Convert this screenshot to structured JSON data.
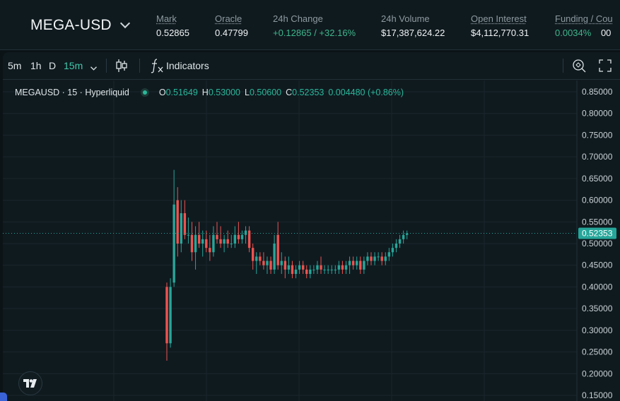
{
  "header": {
    "pair": "MEGA-USD",
    "stats": [
      {
        "label": "Mark",
        "value": "0.52865",
        "underline": true,
        "green": false
      },
      {
        "label": "Oracle",
        "value": "0.47799",
        "underline": true,
        "green": false
      },
      {
        "label": "24h Change",
        "value": "+0.12865 / +32.16%",
        "underline": false,
        "green": true
      },
      {
        "label": "24h Volume",
        "value": "$17,387,624.22",
        "underline": false,
        "green": false
      },
      {
        "label": "Open Interest",
        "value": "$4,112,770.31",
        "underline": true,
        "green": false
      },
      {
        "label": "Funding / Cou",
        "value": "0.0034%",
        "value2": "00",
        "underline": true,
        "green": true
      }
    ]
  },
  "toolbar": {
    "timeframes": [
      "5m",
      "1h",
      "D",
      "15m"
    ],
    "active_timeframe": "15m",
    "indicators_label": "Indicators",
    "indicators_icon": "fx-icon",
    "chart_type_icon": "candlestick-icon",
    "snapshot_icon": "camera-icon",
    "fullscreen_icon": "fullscreen-icon"
  },
  "legend": {
    "symbol": "MEGAUSD · 15 · Hyperliquid",
    "o_label": "O",
    "o": "0.51649",
    "h_label": "H",
    "h": "0.53000",
    "l_label": "L",
    "l": "0.50600",
    "c_label": "C",
    "c": "0.52353",
    "change": "0.004480 (+0.86%)"
  },
  "colors": {
    "up": "#26a69a",
    "down": "#ef5350",
    "accent": "#44c8aa",
    "background": "#0f1a1f"
  },
  "chart_data": {
    "type": "candlestick",
    "ylim": [
      0.15,
      0.85
    ],
    "y_ticks": [
      "0.85000",
      "0.80000",
      "0.75000",
      "0.70000",
      "0.65000",
      "0.60000",
      "0.55000",
      "0.50000",
      "0.45000",
      "0.40000",
      "0.35000",
      "0.30000",
      "0.25000",
      "0.20000",
      "0.15000"
    ],
    "last_price": 0.52353,
    "last_price_label": "0.52353",
    "grid": true,
    "candles": [
      {
        "o": 0.4,
        "h": 0.41,
        "l": 0.23,
        "c": 0.27
      },
      {
        "o": 0.27,
        "h": 0.42,
        "l": 0.26,
        "c": 0.4
      },
      {
        "o": 0.41,
        "h": 0.67,
        "l": 0.4,
        "c": 0.59
      },
      {
        "o": 0.6,
        "h": 0.63,
        "l": 0.47,
        "c": 0.5
      },
      {
        "o": 0.5,
        "h": 0.6,
        "l": 0.48,
        "c": 0.57
      },
      {
        "o": 0.57,
        "h": 0.6,
        "l": 0.51,
        "c": 0.52
      },
      {
        "o": 0.52,
        "h": 0.56,
        "l": 0.5,
        "c": 0.52
      },
      {
        "o": 0.52,
        "h": 0.55,
        "l": 0.46,
        "c": 0.48
      },
      {
        "o": 0.48,
        "h": 0.54,
        "l": 0.44,
        "c": 0.52
      },
      {
        "o": 0.52,
        "h": 0.55,
        "l": 0.49,
        "c": 0.5
      },
      {
        "o": 0.5,
        "h": 0.53,
        "l": 0.47,
        "c": 0.51
      },
      {
        "o": 0.51,
        "h": 0.53,
        "l": 0.48,
        "c": 0.49
      },
      {
        "o": 0.49,
        "h": 0.52,
        "l": 0.46,
        "c": 0.48
      },
      {
        "o": 0.48,
        "h": 0.54,
        "l": 0.47,
        "c": 0.52
      },
      {
        "o": 0.52,
        "h": 0.55,
        "l": 0.5,
        "c": 0.51
      },
      {
        "o": 0.51,
        "h": 0.54,
        "l": 0.49,
        "c": 0.5
      },
      {
        "o": 0.5,
        "h": 0.52,
        "l": 0.48,
        "c": 0.51
      },
      {
        "o": 0.51,
        "h": 0.53,
        "l": 0.49,
        "c": 0.5
      },
      {
        "o": 0.5,
        "h": 0.52,
        "l": 0.49,
        "c": 0.5
      },
      {
        "o": 0.5,
        "h": 0.54,
        "l": 0.49,
        "c": 0.52
      },
      {
        "o": 0.52,
        "h": 0.55,
        "l": 0.5,
        "c": 0.51
      },
      {
        "o": 0.51,
        "h": 0.53,
        "l": 0.5,
        "c": 0.52
      },
      {
        "o": 0.52,
        "h": 0.54,
        "l": 0.5,
        "c": 0.53
      },
      {
        "o": 0.53,
        "h": 0.54,
        "l": 0.48,
        "c": 0.49
      },
      {
        "o": 0.49,
        "h": 0.5,
        "l": 0.44,
        "c": 0.46
      },
      {
        "o": 0.46,
        "h": 0.48,
        "l": 0.43,
        "c": 0.47
      },
      {
        "o": 0.47,
        "h": 0.48,
        "l": 0.45,
        "c": 0.46
      },
      {
        "o": 0.46,
        "h": 0.48,
        "l": 0.44,
        "c": 0.45
      },
      {
        "o": 0.45,
        "h": 0.47,
        "l": 0.43,
        "c": 0.46
      },
      {
        "o": 0.46,
        "h": 0.47,
        "l": 0.43,
        "c": 0.44
      },
      {
        "o": 0.44,
        "h": 0.52,
        "l": 0.43,
        "c": 0.5
      },
      {
        "o": 0.52,
        "h": 0.55,
        "l": 0.44,
        "c": 0.45
      },
      {
        "o": 0.45,
        "h": 0.48,
        "l": 0.43,
        "c": 0.46
      },
      {
        "o": 0.46,
        "h": 0.47,
        "l": 0.42,
        "c": 0.44
      },
      {
        "o": 0.44,
        "h": 0.47,
        "l": 0.43,
        "c": 0.45
      },
      {
        "o": 0.45,
        "h": 0.46,
        "l": 0.42,
        "c": 0.43
      },
      {
        "o": 0.43,
        "h": 0.45,
        "l": 0.42,
        "c": 0.44
      },
      {
        "o": 0.44,
        "h": 0.46,
        "l": 0.43,
        "c": 0.45
      },
      {
        "o": 0.45,
        "h": 0.46,
        "l": 0.43,
        "c": 0.44
      },
      {
        "o": 0.44,
        "h": 0.45,
        "l": 0.42,
        "c": 0.43
      },
      {
        "o": 0.43,
        "h": 0.45,
        "l": 0.42,
        "c": 0.44
      },
      {
        "o": 0.44,
        "h": 0.45,
        "l": 0.43,
        "c": 0.44
      },
      {
        "o": 0.44,
        "h": 0.46,
        "l": 0.43,
        "c": 0.45
      },
      {
        "o": 0.45,
        "h": 0.47,
        "l": 0.43,
        "c": 0.44
      },
      {
        "o": 0.44,
        "h": 0.45,
        "l": 0.43,
        "c": 0.44
      },
      {
        "o": 0.44,
        "h": 0.45,
        "l": 0.43,
        "c": 0.44
      },
      {
        "o": 0.44,
        "h": 0.45,
        "l": 0.43,
        "c": 0.44
      },
      {
        "o": 0.44,
        "h": 0.45,
        "l": 0.43,
        "c": 0.44
      },
      {
        "o": 0.44,
        "h": 0.46,
        "l": 0.43,
        "c": 0.45
      },
      {
        "o": 0.45,
        "h": 0.46,
        "l": 0.43,
        "c": 0.44
      },
      {
        "o": 0.44,
        "h": 0.46,
        "l": 0.43,
        "c": 0.45
      },
      {
        "o": 0.45,
        "h": 0.47,
        "l": 0.43,
        "c": 0.46
      },
      {
        "o": 0.46,
        "h": 0.47,
        "l": 0.44,
        "c": 0.45
      },
      {
        "o": 0.45,
        "h": 0.47,
        "l": 0.44,
        "c": 0.46
      },
      {
        "o": 0.46,
        "h": 0.47,
        "l": 0.43,
        "c": 0.44
      },
      {
        "o": 0.44,
        "h": 0.47,
        "l": 0.43,
        "c": 0.46
      },
      {
        "o": 0.46,
        "h": 0.48,
        "l": 0.45,
        "c": 0.47
      },
      {
        "o": 0.47,
        "h": 0.48,
        "l": 0.45,
        "c": 0.46
      },
      {
        "o": 0.46,
        "h": 0.48,
        "l": 0.45,
        "c": 0.47
      },
      {
        "o": 0.47,
        "h": 0.48,
        "l": 0.46,
        "c": 0.47
      },
      {
        "o": 0.47,
        "h": 0.48,
        "l": 0.45,
        "c": 0.46
      },
      {
        "o": 0.46,
        "h": 0.48,
        "l": 0.45,
        "c": 0.47
      },
      {
        "o": 0.47,
        "h": 0.49,
        "l": 0.46,
        "c": 0.48
      },
      {
        "o": 0.48,
        "h": 0.5,
        "l": 0.47,
        "c": 0.49
      },
      {
        "o": 0.49,
        "h": 0.51,
        "l": 0.48,
        "c": 0.5
      },
      {
        "o": 0.5,
        "h": 0.52,
        "l": 0.49,
        "c": 0.51
      },
      {
        "o": 0.51,
        "h": 0.53,
        "l": 0.5,
        "c": 0.52
      },
      {
        "o": 0.52,
        "h": 0.53,
        "l": 0.51,
        "c": 0.5235
      }
    ]
  }
}
